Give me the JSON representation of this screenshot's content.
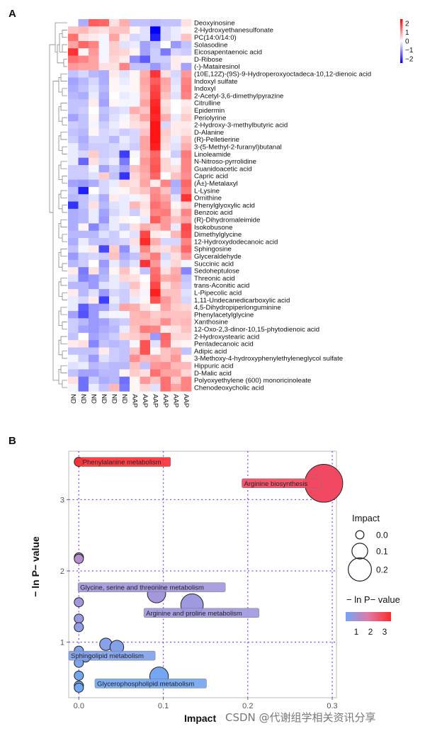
{
  "watermark": "CSDN @代谢组学相关资讯分享",
  "chart_data": [
    {
      "type": "heatmap",
      "panel_label": "A",
      "title": "",
      "columns": [
        "ND",
        "ND",
        "ND",
        "ND",
        "ND",
        "ND",
        "AAP",
        "AAP",
        "AAP",
        "AAP",
        "AAP",
        "AAP"
      ],
      "colorbar": {
        "ticks": [
          2,
          1,
          0,
          -1,
          -2
        ],
        "range": [
          -2.5,
          2.5
        ],
        "low_color": "#0000ff",
        "mid_color": "#ffffff",
        "high_color": "#ff0000"
      },
      "dendrogram": "rows-clustered",
      "rows": [
        {
          "name": "Deoxyinosine",
          "values": [
            0,
            -0.8,
            1.6,
            1.5,
            0.3,
            0.8,
            -0.6,
            -0.6,
            -0.7,
            -0.6,
            -0.6,
            0.3
          ]
        },
        {
          "name": "2-Hydroxyethanesulfonate",
          "values": [
            0.6,
            0.7,
            0.4,
            0.3,
            0.6,
            0.6,
            0.1,
            -0.3,
            -2.5,
            -0.4,
            -0.2,
            0.1
          ]
        },
        {
          "name": "PC(14:0/14:0)",
          "values": [
            1.4,
            0.3,
            0.2,
            -0.1,
            0.9,
            0.2,
            -0.4,
            -0.3,
            -2.2,
            -0.4,
            -0.2,
            0.6
          ]
        },
        {
          "name": "Solasodine",
          "values": [
            0.9,
            1.5,
            1.2,
            -0.1,
            0.5,
            -0.3,
            -0.2,
            -0.9,
            -0.6,
            0,
            -1,
            -0.6
          ]
        },
        {
          "name": "Eicosapentaenoic acid",
          "values": [
            2,
            0.1,
            1,
            -0.1,
            0.5,
            0.4,
            0.1,
            -0.9,
            -0.5,
            -1.3,
            -0.4,
            -0.5
          ]
        },
        {
          "name": "D-Ribose",
          "values": [
            1.4,
            1.2,
            0.9,
            -0.1,
            0.4,
            0.2,
            -1.1,
            -1.6,
            -0.5,
            -0.5,
            0.2,
            0.1
          ]
        },
        {
          "name": "(-)-Matairesinol",
          "values": [
            1,
            0.9,
            0.9,
            0.3,
            0.3,
            1.2,
            -0.6,
            -0.6,
            -1,
            -0.6,
            0.2,
            -0.9
          ]
        },
        {
          "name": "(10E,12Z)-(9S)-9-Hydroperoxyoctadeca-10,12-dienoic acid",
          "values": [
            -0.6,
            -0.4,
            -0.7,
            -0.8,
            0.2,
            -0.3,
            0.1,
            0.8,
            2,
            0.3,
            -0.4,
            1
          ]
        },
        {
          "name": "Indoxyl sulfate",
          "values": [
            -0.9,
            -0.7,
            -0.4,
            -0.8,
            0.1,
            -0.2,
            0.1,
            0.9,
            1.6,
            0.9,
            -0.3,
            1.2
          ]
        },
        {
          "name": "Indoxyl",
          "values": [
            -0.8,
            -0.6,
            -0.3,
            -0.7,
            0.1,
            -0.1,
            0.1,
            0.8,
            1.8,
            0.8,
            -0.2,
            1.3
          ]
        },
        {
          "name": "2-Acetyl-3,6-dimethylpyrazine",
          "values": [
            -0.7,
            -0.8,
            -0.2,
            -0.8,
            0,
            -0.2,
            -0.1,
            0.7,
            1.9,
            0.6,
            -0.3,
            1.2
          ]
        },
        {
          "name": "Citrulline",
          "values": [
            -0.6,
            -0.6,
            0.2,
            -0.9,
            0.1,
            -0.1,
            -0.1,
            0.9,
            2.1,
            0.3,
            0,
            0.2
          ]
        },
        {
          "name": "Epidermin",
          "values": [
            -0.6,
            -0.5,
            0,
            -0.6,
            -0.4,
            -0.3,
            0.8,
            0.6,
            2.2,
            0.4,
            0,
            0.3
          ]
        },
        {
          "name": "Periolyrine",
          "values": [
            -0.9,
            -0.6,
            0.1,
            -0.7,
            -0.3,
            -0.1,
            0.4,
            0.9,
            2.1,
            0.8,
            -0.2,
            0.5
          ]
        },
        {
          "name": "2-Hydroxy-3-methylbutyric acid",
          "values": [
            -0.5,
            -0.6,
            -0.1,
            -0.5,
            -0.2,
            0.1,
            0.3,
            0.4,
            2.3,
            -0.4,
            0.2,
            0.2
          ]
        },
        {
          "name": "D-Alanine",
          "values": [
            -0.6,
            -0.7,
            0.1,
            -0.4,
            -0.3,
            -0.5,
            -0.4,
            0.6,
            2.3,
            0.5,
            0.2,
            0.3
          ]
        },
        {
          "name": "(R)-Pelletierine",
          "values": [
            -0.5,
            -0.8,
            -0.4,
            -0.4,
            -0.7,
            -0.2,
            -0.4,
            0.9,
            2.3,
            0.4,
            -0.2,
            0.6
          ]
        },
        {
          "name": "3-(5-Methyl-2-furanyl)butanal",
          "values": [
            -0.2,
            -0.7,
            -0.5,
            -0.5,
            -0.4,
            -0.3,
            -0.5,
            0.9,
            2.2,
            0.3,
            -0.3,
            0.8
          ]
        },
        {
          "name": "Linoleamide",
          "values": [
            -0.2,
            -0.4,
            0.5,
            -0.5,
            -0.4,
            -1.9,
            -0.1,
            0.8,
            1.5,
            0.1,
            -0.5,
            1.3
          ]
        },
        {
          "name": "N-Nitroso-pyrrolidine",
          "values": [
            -0.2,
            -1.5,
            0.3,
            -0.4,
            -0.2,
            -1.3,
            0,
            1,
            1.6,
            0.4,
            -0.1,
            1.2
          ]
        },
        {
          "name": "Guanidoacetic acid",
          "values": [
            -0.5,
            -0.5,
            -0.1,
            -0.9,
            -0.5,
            -0.9,
            0.6,
            0.9,
            1.7,
            0.4,
            0.3,
            1.2
          ]
        },
        {
          "name": "Capric acid",
          "values": [
            -0.5,
            -0.5,
            -0.3,
            0.5,
            -0.6,
            -2,
            0.4,
            0.8,
            1.5,
            0,
            0.6,
            1.1
          ]
        },
        {
          "name": "(Â±)-Metalaxyl",
          "values": [
            -0.9,
            -1,
            -0.8,
            -0.4,
            -0.2,
            0.4,
            0.3,
            0.9,
            0.2,
            1.2,
            -0.8,
            1.5
          ]
        },
        {
          "name": "L-Lysine",
          "values": [
            -0.6,
            -2.2,
            0,
            -0.4,
            -0.1,
            0.1,
            0.4,
            0.6,
            1.1,
            0.6,
            -0.7,
            1.3
          ]
        },
        {
          "name": "Ornithine",
          "values": [
            -0.7,
            -0.6,
            -0.3,
            -0.8,
            0.2,
            -0.2,
            -0.1,
            0.2,
            1.2,
            0.9,
            -0.3,
            2
          ]
        },
        {
          "name": "Phenylglyoxylic acid",
          "values": [
            -2,
            -0.6,
            0.3,
            -0.7,
            -0.3,
            -0.2,
            0.7,
            0.3,
            1.4,
            1.1,
            0.1,
            0.5
          ]
        },
        {
          "name": "Benzoic acid",
          "values": [
            -0.8,
            -0.7,
            -0.2,
            -0.9,
            -0.4,
            -0.2,
            -0.5,
            0.2,
            1.2,
            1.3,
            0.3,
            1.2
          ]
        },
        {
          "name": "(R)-Dihydromaleimide",
          "values": [
            -0.8,
            -0.7,
            -0.2,
            -1,
            -0.2,
            0.1,
            0,
            -0.2,
            1.6,
            1,
            0.6,
            0.9
          ]
        },
        {
          "name": "Isokobusone",
          "values": [
            -0.8,
            0.1,
            -1.2,
            -0.6,
            -0.2,
            -0.5,
            0.3,
            0.8,
            0.6,
            1,
            -0.2,
            1.8
          ]
        },
        {
          "name": "Dimethylglycine",
          "values": [
            -0.7,
            -0.7,
            -0.7,
            -0.3,
            -0.5,
            -0.1,
            -0.3,
            1.8,
            0.2,
            0.1,
            0.7,
            1.7
          ]
        },
        {
          "name": "12-Hydroxydodecanoic acid",
          "values": [
            -0.8,
            -0.2,
            -0.6,
            -0.6,
            -0.5,
            -0.4,
            0.3,
            2.1,
            0.8,
            -0.4,
            -0.4,
            1.2
          ]
        },
        {
          "name": "Sphingosine",
          "values": [
            -0.6,
            -0.1,
            0.2,
            -1.8,
            0.5,
            -1.1,
            -0.2,
            1.2,
            0.4,
            0.3,
            0.6,
            1.5
          ]
        },
        {
          "name": "Glyceraldehyde",
          "values": [
            -1,
            -0.5,
            -0.4,
            -0.5,
            0.6,
            -0.8,
            -0.6,
            0.8,
            1.3,
            -0.4,
            0.3,
            1
          ]
        },
        {
          "name": "Succinic acid",
          "values": [
            -0.7,
            -0.5,
            0,
            -1,
            -0.2,
            -0.6,
            -0.3,
            2,
            1,
            -0.2,
            0.4,
            -0.1
          ]
        },
        {
          "name": "Sedoheptulose",
          "values": [
            0.2,
            -1.3,
            0.3,
            -0.8,
            0.1,
            0.6,
            0.1,
            -0.6,
            1.4,
            0.3,
            0.8,
            -1.2
          ]
        },
        {
          "name": "Threonic acid",
          "values": [
            -0.3,
            -1.2,
            -1,
            -0.7,
            -0.2,
            0.4,
            0.3,
            0,
            1.5,
            0.8,
            0.9,
            -0.6
          ]
        },
        {
          "name": "trans-Aconitic acid",
          "values": [
            -0.7,
            -0.7,
            -1,
            -0.3,
            -0.2,
            -0.4,
            0.6,
            0.1,
            1.8,
            0.3,
            0.7,
            -0.5
          ]
        },
        {
          "name": "L-Pipecolic acid",
          "values": [
            0.2,
            -0.7,
            -0.3,
            -1,
            -0.4,
            -0.5,
            0.3,
            -0.1,
            2.2,
            0.6,
            0.6,
            -0.3
          ]
        },
        {
          "name": "1,11-Undecanedicarboxylic acid",
          "values": [
            -0.2,
            -0.4,
            0.2,
            -1.9,
            -0.2,
            -0.5,
            -0.2,
            0.1,
            1.7,
            1,
            0.6,
            -0.4
          ]
        },
        {
          "name": "4,5-Dihydropiperlonguminine",
          "values": [
            -0.2,
            -1.6,
            -1,
            -0.9,
            -0.4,
            0.9,
            0.8,
            0.3,
            0.1,
            0.9,
            0.5,
            0.4
          ]
        },
        {
          "name": "Phenylacetylglycine",
          "values": [
            -0.9,
            -1.7,
            -1,
            -0.2,
            -0.1,
            -0.1,
            0.7,
            0.8,
            0.5,
            0.6,
            0.6,
            0.6
          ]
        },
        {
          "name": "Xanthosine",
          "values": [
            -0.5,
            -0.7,
            -1,
            -0.9,
            -0.6,
            -0.5,
            0.7,
            0.7,
            0.6,
            1.1,
            0.6,
            0.7
          ]
        },
        {
          "name": "12-Oxo-2,3-dinor-10,15-phytodienoic acid",
          "values": [
            -0.5,
            -0.9,
            -1,
            -0.8,
            -0.7,
            -0.2,
            0.6,
            1.3,
            1.2,
            0.2,
            0.3,
            0.6
          ]
        },
        {
          "name": "2-Hydroxystearic acid",
          "values": [
            -0.6,
            0,
            -0.9,
            -0.7,
            -0.5,
            0.4,
            0.5,
            0.7,
            -1,
            1.5,
            0.4,
            0.4
          ]
        },
        {
          "name": "Pentadecanoic acid",
          "values": [
            0.2,
            0.3,
            -1.2,
            -0.6,
            -0.7,
            -0.6,
            -0.1,
            1.7,
            -0.3,
            1.4,
            0.2,
            0.1
          ]
        },
        {
          "name": "Adipic acid",
          "values": [
            -0.6,
            -0.6,
            -0.6,
            0.2,
            -0.5,
            -0.6,
            0.6,
            1.7,
            0.1,
            0.6,
            0.8,
            -0.6
          ]
        },
        {
          "name": "3-Methoxy-4-hydroxyphenylethyleneglycol sulfate",
          "values": [
            -0.1,
            -0.5,
            -1,
            -0.3,
            -0.5,
            -0.6,
            1.1,
            0.7,
            0.8,
            0.6,
            1,
            0.1
          ]
        },
        {
          "name": "Hippuric acid",
          "values": [
            -0.3,
            -0.2,
            -0.7,
            -0.6,
            -0.7,
            -0.7,
            0.6,
            -0.6,
            1,
            1.1,
            0.7,
            0.7
          ]
        },
        {
          "name": "D-Malic acid",
          "values": [
            -0.6,
            -0.9,
            -0.9,
            -0.7,
            -0.7,
            0.1,
            0.5,
            0.3,
            1.4,
            0.9,
            0.9,
            0.4
          ]
        },
        {
          "name": "Polyoxyethylene (600) monoricinoleate",
          "values": [
            0.3,
            -1.4,
            -0.5,
            -0.8,
            -0.7,
            -1.4,
            0.1,
            1,
            0.6,
            1.4,
            0.5,
            1.2
          ]
        },
        {
          "name": "Chenodeoxycholic acid",
          "values": [
            -0.1,
            -1.4,
            -0.2,
            -0.6,
            0.7,
            -1.3,
            0.1,
            0.4,
            -0.3,
            1.4,
            0.9,
            1.2
          ]
        }
      ]
    },
    {
      "type": "scatter",
      "panel_label": "B",
      "title": "",
      "xlabel": "Impact",
      "ylabel": "− ln P− value",
      "xlim": [
        -0.012,
        0.305
      ],
      "ylim": [
        0.22,
        3.68
      ],
      "xticks": [
        0.0,
        0.1,
        0.2,
        0.3
      ],
      "xtick_labels": [
        "0.0",
        "0.1",
        "0.2",
        "0.3"
      ],
      "yticks": [
        1,
        2,
        3
      ],
      "ytick_labels": [
        "1",
        "2",
        "3"
      ],
      "grid": true,
      "grid_style": "dotted purple",
      "size_legend": {
        "title": "Impact",
        "values": [
          0.0,
          0.1,
          0.2
        ],
        "labels": [
          "0.0",
          "0.1",
          "0.2"
        ]
      },
      "color_legend": {
        "title": "− ln P− value",
        "ticks": [
          1,
          2,
          3
        ],
        "labels": [
          "1",
          "2",
          "3"
        ],
        "low_color": "#6fa8f5",
        "high_color": "#ff2a2a",
        "range": [
          0.4,
          3.6
        ]
      },
      "legend_position": "right",
      "points": [
        {
          "x": 0.0,
          "y": 3.53,
          "label": "Phenylalanine metabolism"
        },
        {
          "x": 0.29,
          "y": 3.23,
          "label": "Arginine biosynthesis"
        },
        {
          "x": 0.0,
          "y": 2.19,
          "label": ""
        },
        {
          "x": 0.0,
          "y": 2.17,
          "label": ""
        },
        {
          "x": 0.092,
          "y": 1.68,
          "label": "Glycine, serine and threonine metabolism"
        },
        {
          "x": 0.134,
          "y": 1.52,
          "label": "Arginine and proline metabolism"
        },
        {
          "x": 0.0,
          "y": 1.56,
          "label": ""
        },
        {
          "x": 0.0,
          "y": 1.33,
          "label": ""
        },
        {
          "x": 0.0,
          "y": 1.21,
          "label": ""
        },
        {
          "x": 0.032,
          "y": 0.97,
          "label": ""
        },
        {
          "x": 0.045,
          "y": 0.93,
          "label": ""
        },
        {
          "x": 0.0,
          "y": 0.88,
          "label": "Sphingolipid metabolism"
        },
        {
          "x": 0.008,
          "y": 0.79,
          "label": ""
        },
        {
          "x": 0.0,
          "y": 0.71,
          "label": ""
        },
        {
          "x": 0.0,
          "y": 0.53,
          "label": ""
        },
        {
          "x": 0.095,
          "y": 0.52,
          "label": "Glycerophospholipid metabolism"
        },
        {
          "x": 0.0,
          "y": 0.39,
          "label": ""
        },
        {
          "x": 0.0,
          "y": 0.36,
          "label": ""
        }
      ]
    }
  ]
}
